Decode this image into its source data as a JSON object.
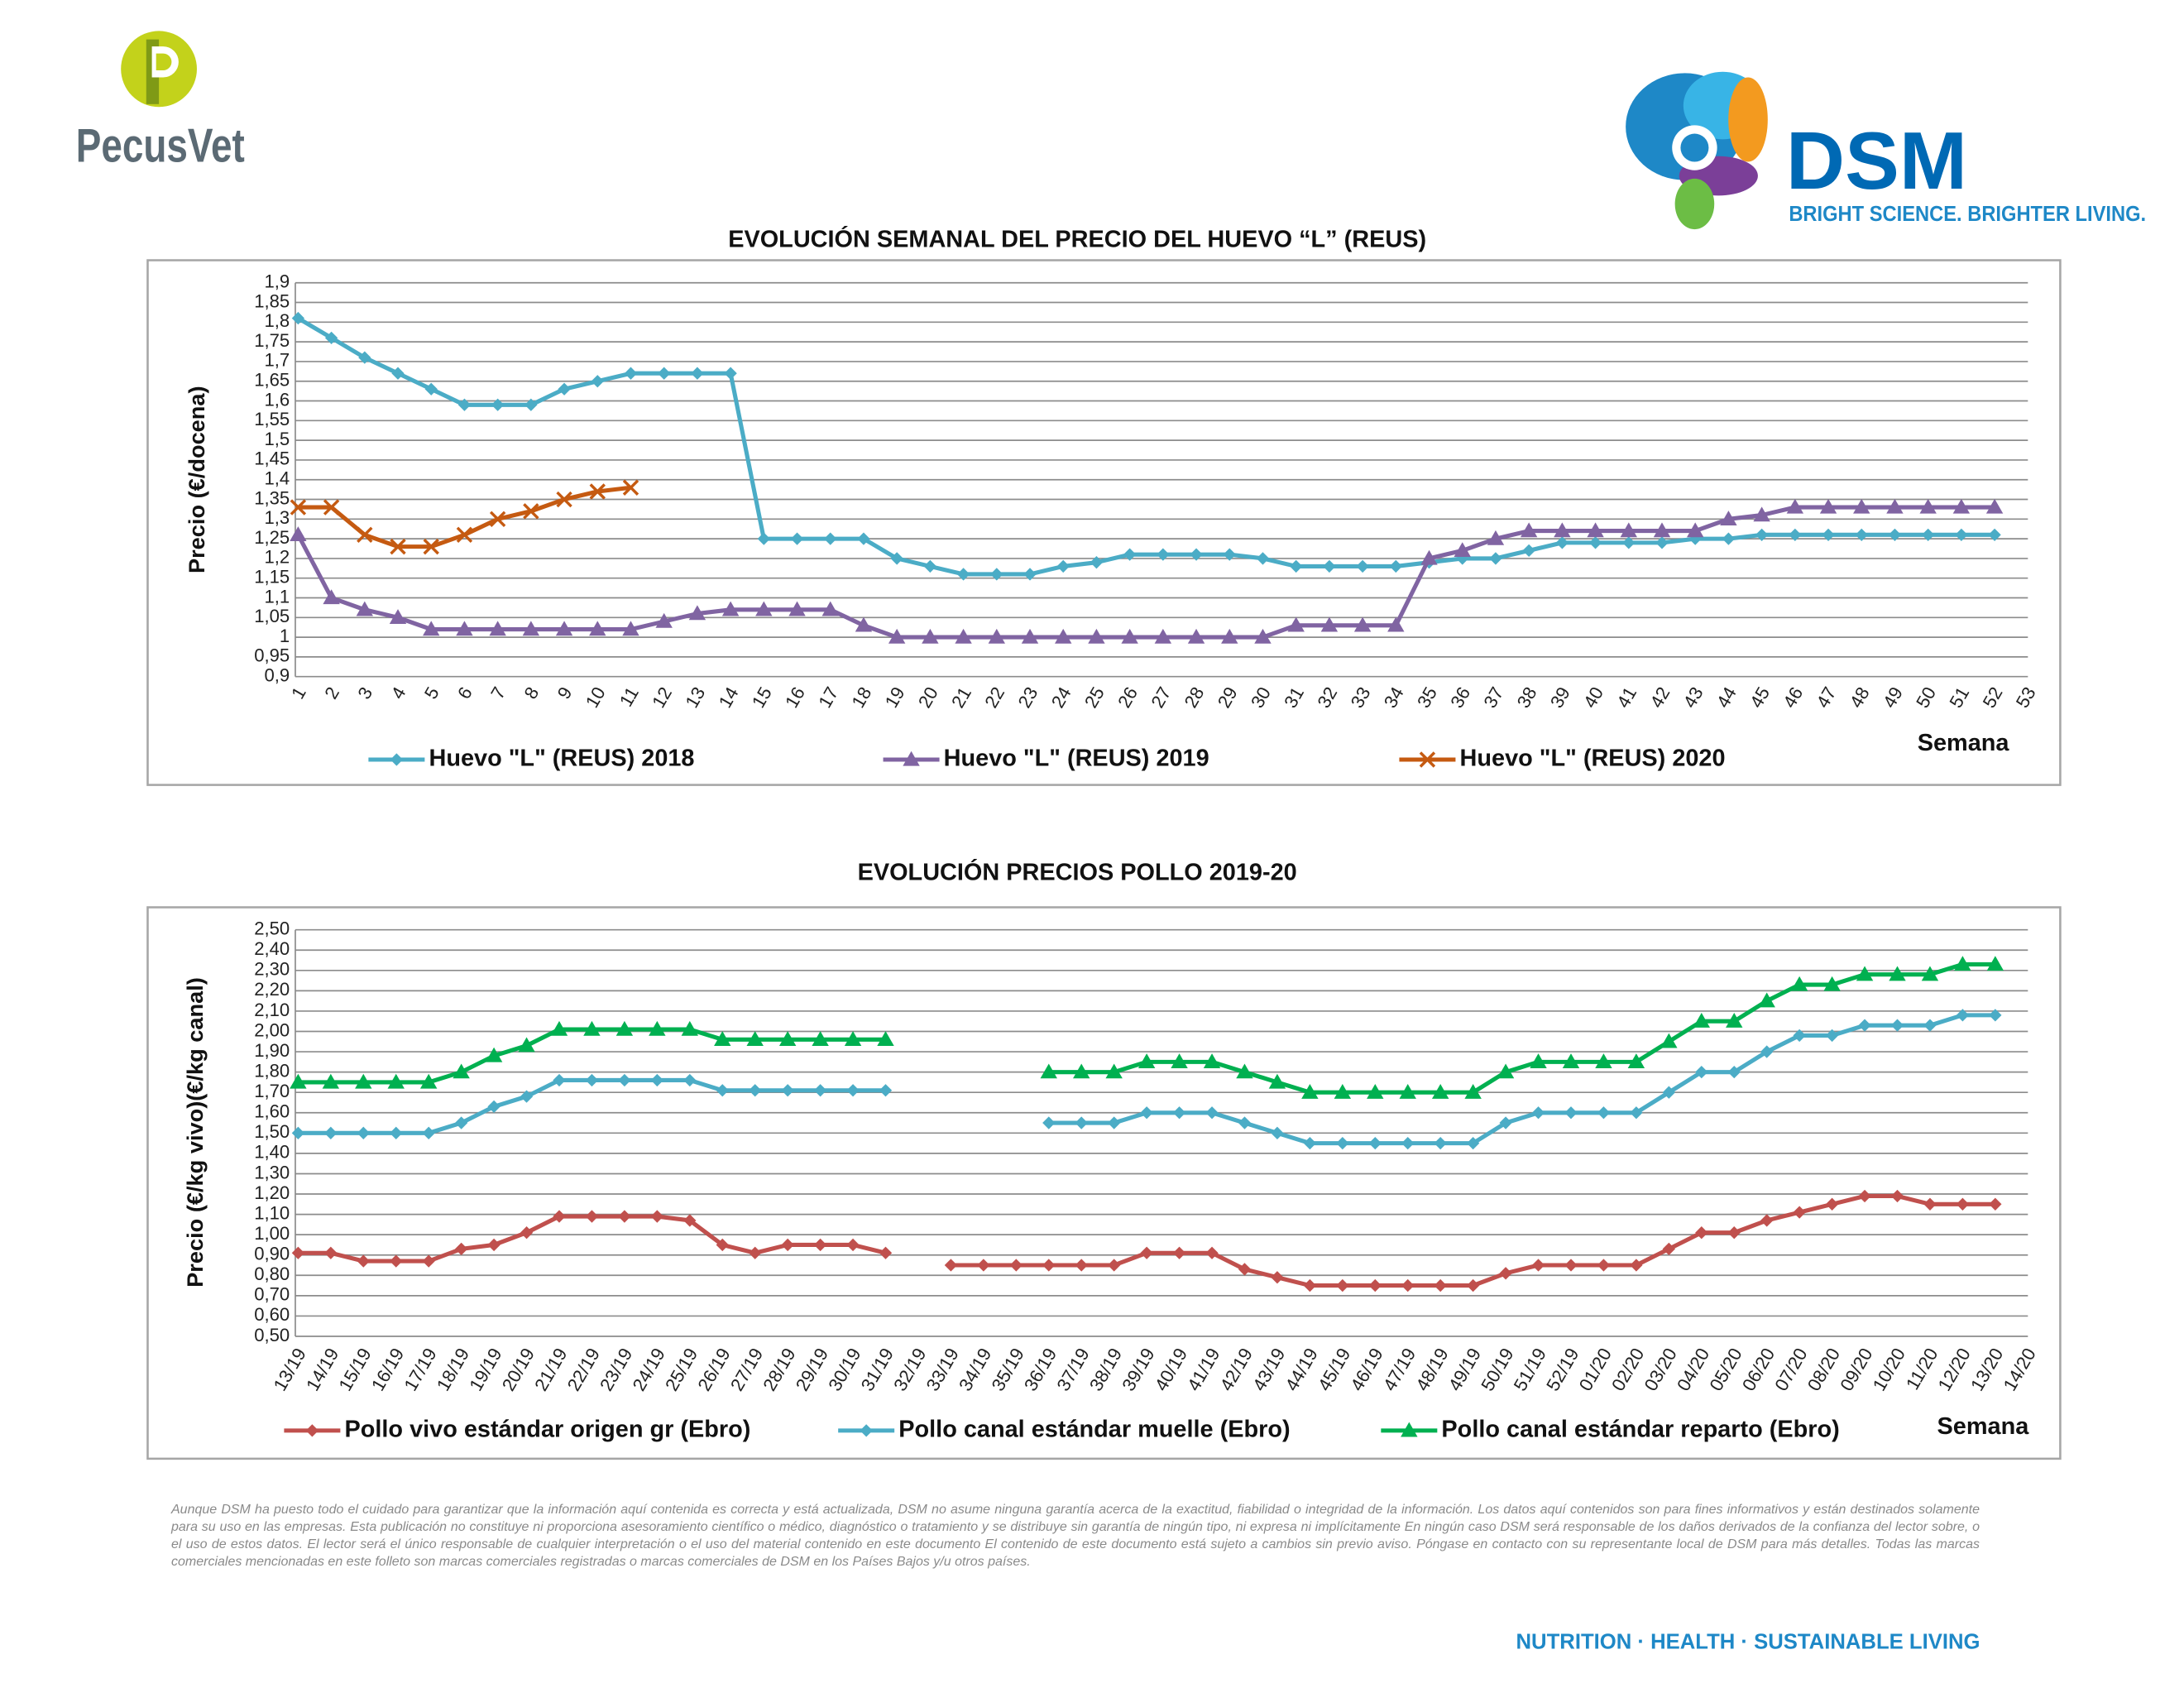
{
  "header": {
    "brand_left": "PecusVet",
    "brand_right": "DSM",
    "tagline": "BRIGHT SCIENCE. BRIGHTER LIVING."
  },
  "chart_data": [
    {
      "type": "line",
      "title": "EVOLUCIÓN SEMANAL DEL PRECIO DEL HUEVO “L” (REUS)",
      "y_label": "Precio (€/docena)",
      "x_label": "Semana",
      "categories": [
        1,
        2,
        3,
        4,
        5,
        6,
        7,
        8,
        9,
        10,
        11,
        12,
        13,
        14,
        15,
        16,
        17,
        18,
        19,
        20,
        21,
        22,
        23,
        24,
        25,
        26,
        27,
        28,
        29,
        30,
        31,
        32,
        33,
        34,
        35,
        36,
        37,
        38,
        39,
        40,
        41,
        42,
        43,
        44,
        45,
        46,
        47,
        48,
        49,
        50,
        51,
        52,
        53
      ],
      "ylim": [
        0.9,
        1.9
      ],
      "yticks": [
        {
          "value": 0.9,
          "label": "0,9"
        },
        {
          "value": 0.95,
          "label": "0,95"
        },
        1,
        {
          "value": 1.05,
          "label": "1,05"
        },
        {
          "value": 1.1,
          "label": "1,1"
        },
        {
          "value": 1.15,
          "label": "1,15"
        },
        {
          "value": 1.2,
          "label": "1,2"
        },
        {
          "value": 1.25,
          "label": "1,25"
        },
        {
          "value": 1.3,
          "label": "1,3"
        },
        {
          "value": 1.35,
          "label": "1,35"
        },
        {
          "value": 1.4,
          "label": "1,4"
        },
        {
          "value": 1.45,
          "label": "1,45"
        },
        {
          "value": 1.5,
          "label": "1,5"
        },
        {
          "value": 1.55,
          "label": "1,55"
        },
        {
          "value": 1.6,
          "label": "1,6"
        },
        {
          "value": 1.65,
          "label": "1,65"
        },
        {
          "value": 1.7,
          "label": "1,7"
        },
        {
          "value": 1.75,
          "label": "1,75"
        },
        {
          "value": 1.8,
          "label": "1,8"
        },
        {
          "value": 1.85,
          "label": "1,85"
        },
        {
          "value": 1.9,
          "label": "1,9"
        }
      ],
      "grid": true,
      "series": [
        {
          "name": "Huevo \"L\" (REUS) 2018",
          "color": "#4bacc6",
          "marker": "diamond",
          "values": [
            1.81,
            1.76,
            1.71,
            1.67,
            1.63,
            1.59,
            1.59,
            1.59,
            1.63,
            1.65,
            1.67,
            1.67,
            1.67,
            1.67,
            1.25,
            1.25,
            1.25,
            1.25,
            1.2,
            1.18,
            1.16,
            1.16,
            1.16,
            1.18,
            1.19,
            1.21,
            1.21,
            1.21,
            1.21,
            1.2,
            1.18,
            1.18,
            1.18,
            1.18,
            1.19,
            1.2,
            1.2,
            1.22,
            1.24,
            1.24,
            1.24,
            1.24,
            1.25,
            1.25,
            1.26,
            1.26,
            1.26,
            1.26,
            1.26,
            1.26,
            1.26,
            1.26,
            null
          ]
        },
        {
          "name": "Huevo \"L\" (REUS) 2019",
          "color": "#8064a2",
          "marker": "triangle",
          "values": [
            1.26,
            1.1,
            1.07,
            1.05,
            1.02,
            1.02,
            1.02,
            1.02,
            1.02,
            1.02,
            1.02,
            1.04,
            1.06,
            1.07,
            1.07,
            1.07,
            1.07,
            1.03,
            1.0,
            1.0,
            1.0,
            1.0,
            1.0,
            1.0,
            1.0,
            1.0,
            1.0,
            1.0,
            1.0,
            1.0,
            1.03,
            1.03,
            1.03,
            1.03,
            1.2,
            1.22,
            1.25,
            1.27,
            1.27,
            1.27,
            1.27,
            1.27,
            1.27,
            1.3,
            1.31,
            1.33,
            1.33,
            1.33,
            1.33,
            1.33,
            1.33,
            1.33,
            null
          ]
        },
        {
          "name": "Huevo \"L\" (REUS) 2020",
          "color": "#c55a11",
          "marker": "x",
          "values": [
            1.33,
            1.33,
            1.26,
            1.23,
            1.23,
            1.26,
            1.3,
            1.32,
            1.35,
            1.37,
            1.38,
            null,
            null,
            null,
            null,
            null,
            null,
            null,
            null,
            null,
            null,
            null,
            null,
            null,
            null,
            null,
            null,
            null,
            null,
            null,
            null,
            null,
            null,
            null,
            null,
            null,
            null,
            null,
            null,
            null,
            null,
            null,
            null,
            null,
            null,
            null,
            null,
            null,
            null,
            null,
            null,
            null,
            null
          ]
        }
      ]
    },
    {
      "type": "line",
      "title": "EVOLUCIÓN PRECIOS POLLO 2019-20",
      "y_label": "Precio (€/kg vivo)(€/kg canal)",
      "x_label": "Semana",
      "categories": [
        "13/19",
        "14/19",
        "15/19",
        "16/19",
        "17/19",
        "18/19",
        "19/19",
        "20/19",
        "21/19",
        "22/19",
        "23/19",
        "24/19",
        "25/19",
        "26/19",
        "27/19",
        "28/19",
        "29/19",
        "30/19",
        "31/19",
        "32/19",
        "33/19",
        "34/19",
        "35/19",
        "36/19",
        "37/19",
        "38/19",
        "39/19",
        "40/19",
        "41/19",
        "42/19",
        "43/19",
        "44/19",
        "45/19",
        "46/19",
        "47/19",
        "48/19",
        "49/19",
        "50/19",
        "51/19",
        "52/19",
        "01/20",
        "02/20",
        "03/20",
        "04/20",
        "05/20",
        "06/20",
        "07/20",
        "08/20",
        "09/20",
        "10/20",
        "11/20",
        "12/20",
        "13/20",
        "14/20"
      ],
      "ylim": [
        0.5,
        2.5
      ],
      "yticks": [
        {
          "value": 0.5,
          "label": "0,50"
        },
        {
          "value": 0.6,
          "label": "0,60"
        },
        {
          "value": 0.7,
          "label": "0,70"
        },
        {
          "value": 0.8,
          "label": "0,80"
        },
        {
          "value": 0.9,
          "label": "0,90"
        },
        {
          "value": 1.0,
          "label": "1,00"
        },
        {
          "value": 1.1,
          "label": "1,10"
        },
        {
          "value": 1.2,
          "label": "1,20"
        },
        {
          "value": 1.3,
          "label": "1,30"
        },
        {
          "value": 1.4,
          "label": "1,40"
        },
        {
          "value": 1.5,
          "label": "1,50"
        },
        {
          "value": 1.6,
          "label": "1,60"
        },
        {
          "value": 1.7,
          "label": "1,70"
        },
        {
          "value": 1.8,
          "label": "1,80"
        },
        {
          "value": 1.9,
          "label": "1,90"
        },
        {
          "value": 2.0,
          "label": "2,00"
        },
        {
          "value": 2.1,
          "label": "2,10"
        },
        {
          "value": 2.2,
          "label": "2,20"
        },
        {
          "value": 2.3,
          "label": "2,30"
        },
        {
          "value": 2.4,
          "label": "2,40"
        },
        {
          "value": 2.5,
          "label": "2,50"
        }
      ],
      "grid": true,
      "series": [
        {
          "name": "Pollo vivo estándar origen gr (Ebro)",
          "color": "#c0504d",
          "marker": "diamond",
          "values": [
            0.91,
            0.91,
            0.87,
            0.87,
            0.87,
            0.93,
            0.95,
            1.01,
            1.09,
            1.09,
            1.09,
            1.09,
            1.07,
            0.95,
            0.91,
            0.95,
            0.95,
            0.95,
            0.91,
            null,
            0.85,
            0.85,
            0.85,
            0.85,
            0.85,
            0.85,
            0.91,
            0.91,
            0.91,
            0.83,
            0.79,
            0.75,
            0.75,
            0.75,
            0.75,
            0.75,
            0.75,
            0.81,
            0.85,
            0.85,
            0.85,
            0.85,
            0.93,
            1.01,
            1.01,
            1.07,
            1.11,
            1.15,
            1.19,
            1.19,
            1.15,
            1.15,
            1.15,
            null
          ]
        },
        {
          "name": "Pollo canal estándar muelle (Ebro)",
          "color": "#4bacc6",
          "marker": "diamond",
          "values": [
            1.5,
            1.5,
            1.5,
            1.5,
            1.5,
            1.55,
            1.63,
            1.68,
            1.76,
            1.76,
            1.76,
            1.76,
            1.76,
            1.71,
            1.71,
            1.71,
            1.71,
            1.71,
            1.71,
            null,
            null,
            null,
            null,
            1.55,
            1.55,
            1.55,
            1.6,
            1.6,
            1.6,
            1.55,
            1.5,
            1.45,
            1.45,
            1.45,
            1.45,
            1.45,
            1.45,
            1.55,
            1.6,
            1.6,
            1.6,
            1.6,
            1.7,
            1.8,
            1.8,
            1.9,
            1.98,
            1.98,
            2.03,
            2.03,
            2.03,
            2.08,
            2.08,
            null
          ]
        },
        {
          "name": "Pollo canal estándar reparto (Ebro)",
          "color": "#00b050",
          "marker": "triangle",
          "values": [
            1.75,
            1.75,
            1.75,
            1.75,
            1.75,
            1.8,
            1.88,
            1.93,
            2.01,
            2.01,
            2.01,
            2.01,
            2.01,
            1.96,
            1.96,
            1.96,
            1.96,
            1.96,
            1.96,
            null,
            null,
            null,
            null,
            1.8,
            1.8,
            1.8,
            1.85,
            1.85,
            1.85,
            1.8,
            1.75,
            1.7,
            1.7,
            1.7,
            1.7,
            1.7,
            1.7,
            1.8,
            1.85,
            1.85,
            1.85,
            1.85,
            1.95,
            2.05,
            2.05,
            2.15,
            2.23,
            2.23,
            2.28,
            2.28,
            2.28,
            2.33,
            2.33,
            null
          ]
        }
      ]
    }
  ],
  "disclaimer": "Aunque DSM ha puesto todo el cuidado para garantizar que la información aquí contenida es correcta y está actualizada, DSM no asume ninguna garantía acerca de la exactitud, fiabilidad o integridad de la información. Los datos aquí contenidos son para fines informativos y están destinados solamente para su uso en las empresas. Esta publicación no constituye ni proporciona asesoramiento científico o médico, diagnóstico o tratamiento y se distribuye sin garantía de ningún tipo, ni expresa ni implícitamente En ningún caso DSM será responsable de los daños derivados de la confianza del lector sobre, o el uso de estos datos. El lector será el único responsable de cualquier interpretación o el uso del material contenido en este documento El contenido de este documento está sujeto a cambios sin previo aviso. Póngase en contacto con su representante local de DSM para más detalles. Todas las marcas comerciales mencionadas en este folleto son marcas comerciales registradas o marcas comerciales de DSM en los Países Bajos y/u otros países.",
  "footer": "NUTRITION · HEALTH · SUSTAINABLE LIVING"
}
